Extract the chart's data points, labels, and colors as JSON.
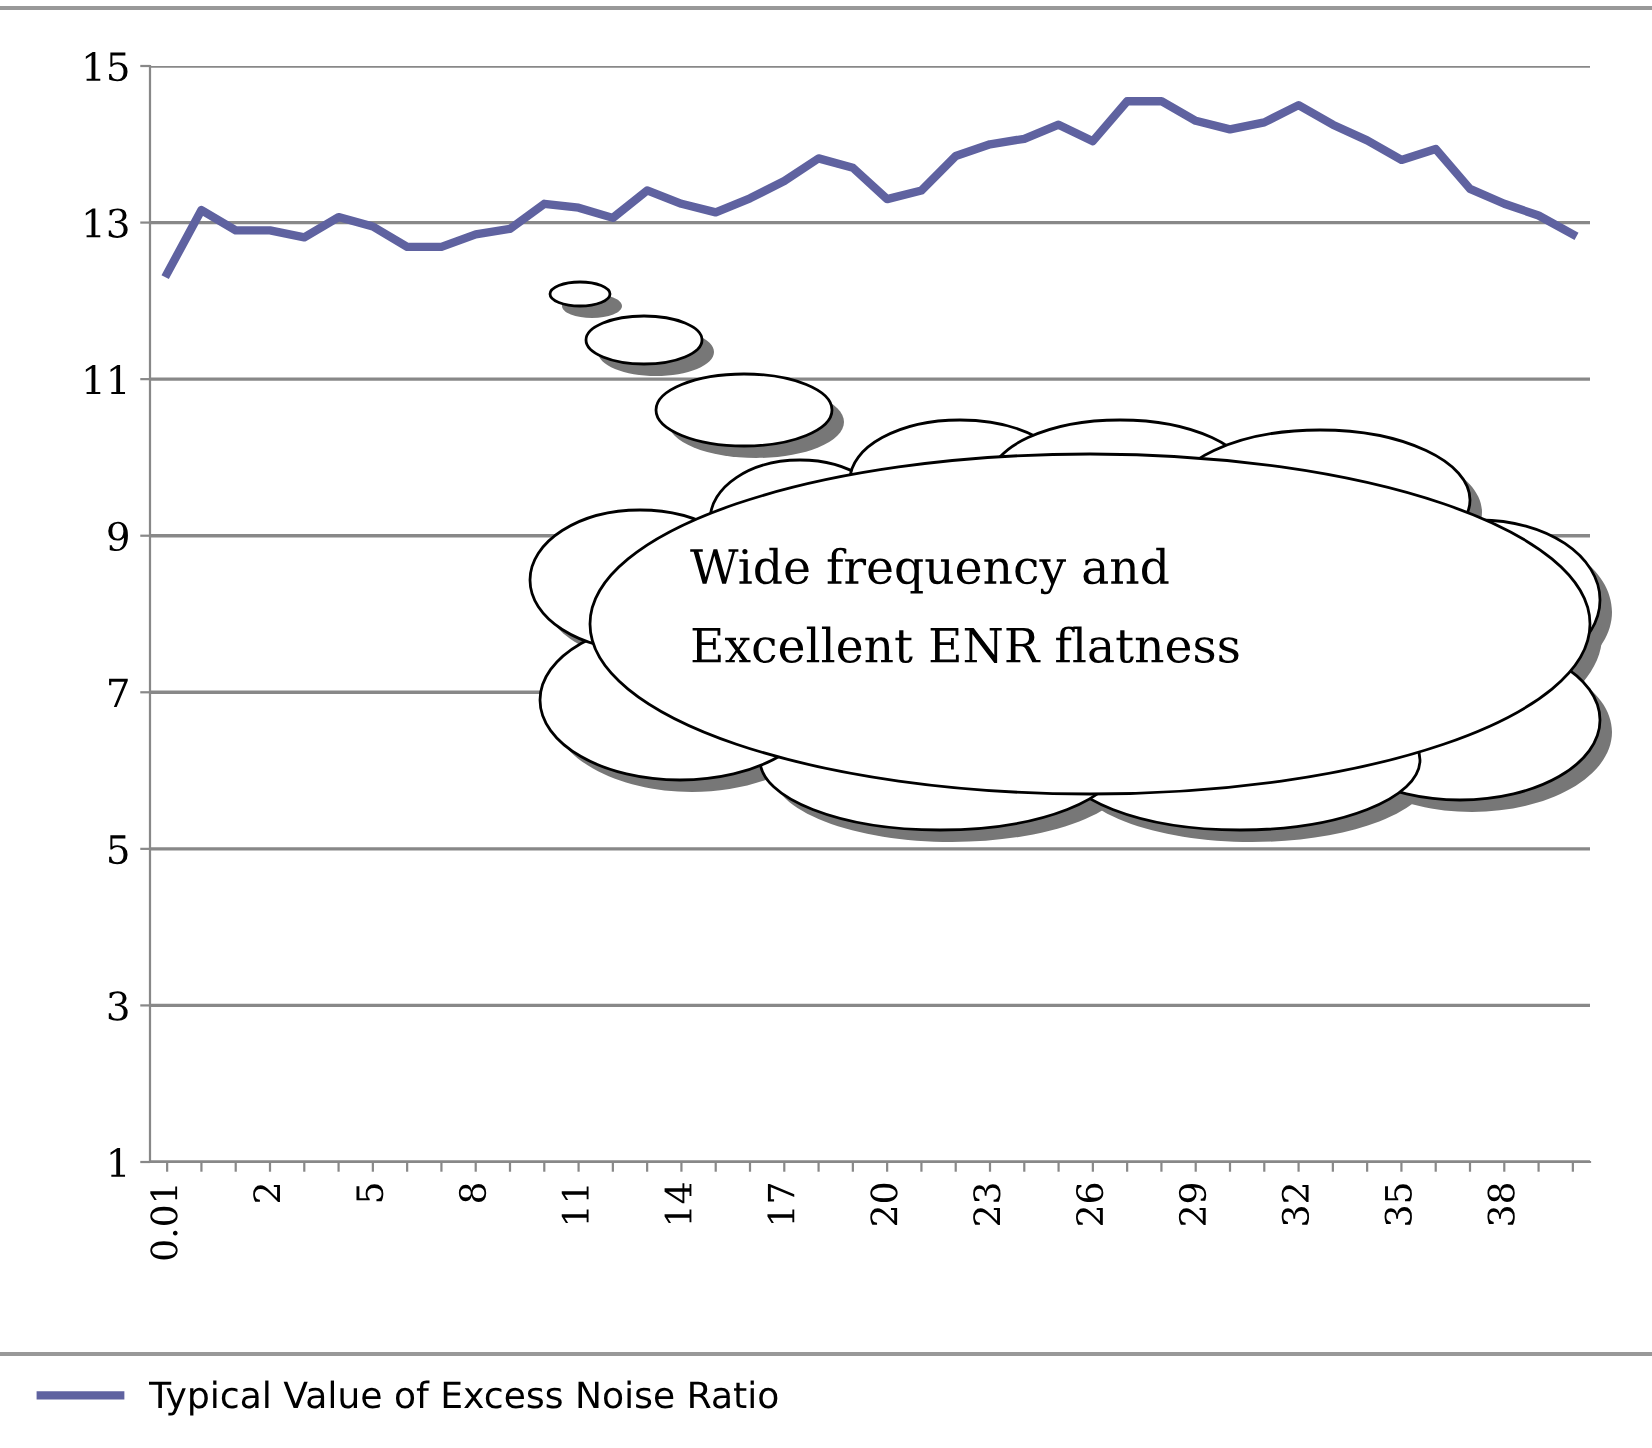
{
  "chart_data": {
    "type": "line",
    "categories": [
      "0.01",
      null,
      null,
      "2",
      null,
      null,
      "5",
      null,
      null,
      "8",
      null,
      null,
      "11",
      null,
      null,
      "14",
      null,
      null,
      "17",
      null,
      null,
      "20",
      null,
      null,
      "23",
      null,
      null,
      "26",
      null,
      null,
      "29",
      null,
      null,
      "32",
      null,
      null,
      "35",
      null,
      null,
      "38",
      null,
      null
    ],
    "series": [
      {
        "name": "Typical Value of Excess Noise Ratio",
        "color": "#5f62a0",
        "values": [
          12.35,
          13.16,
          12.9,
          12.9,
          12.81,
          13.07,
          12.95,
          12.69,
          12.69,
          12.85,
          12.92,
          13.24,
          13.19,
          13.06,
          13.41,
          13.24,
          13.13,
          13.31,
          13.53,
          13.82,
          13.7,
          13.3,
          13.41,
          13.85,
          14.0,
          14.07,
          14.25,
          14.04,
          14.55,
          14.55,
          14.3,
          14.19,
          14.28,
          14.5,
          14.25,
          14.05,
          13.8,
          13.94,
          13.43,
          13.24,
          13.09,
          12.85
        ]
      }
    ],
    "ylim": [
      1,
      15
    ],
    "yticks": [
      1,
      3,
      5,
      7,
      9,
      11,
      13,
      15
    ],
    "grid": "y",
    "legend": "bottom",
    "marker": "none",
    "line_style": "solid",
    "annotations": [
      "Wide frequency and\nExcellent ENR flatness"
    ]
  }
}
